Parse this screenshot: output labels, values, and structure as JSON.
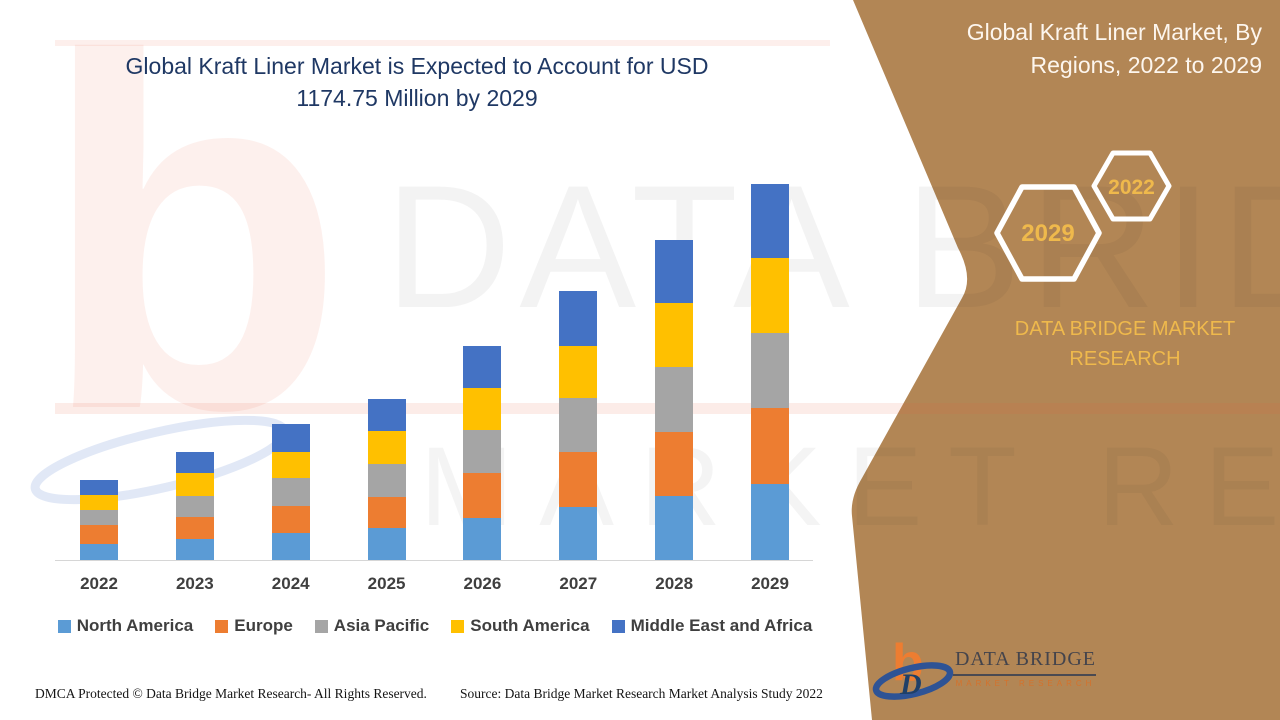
{
  "header": {
    "title_line1": "Global Kraft Liner Market is Expected to Account for USD",
    "title_line2": "1174.75 Million by 2029"
  },
  "side_panel": {
    "bg_color": "#b28655",
    "heading_line1": "Global Kraft Liner Market, By",
    "heading_line2": "Regions, 2022 to 2029",
    "hex_back_label": "2022",
    "hex_front_label": "2029",
    "brand_line1": "DATA BRIDGE MARKET",
    "brand_line2": "RESEARCH",
    "accent_gold": "#efb94c"
  },
  "chart_data": {
    "type": "bar",
    "stacked": true,
    "title": "Global Kraft Liner Market is Expected to Account for USD 1174.75 Million by 2029",
    "unit": "USD Million",
    "categories": [
      "2022",
      "2023",
      "2024",
      "2025",
      "2026",
      "2027",
      "2028",
      "2029"
    ],
    "series": [
      {
        "name": "North America",
        "color": "#5B9BD5",
        "values": [
          50,
          65,
          83,
          100,
          131,
          165,
          200,
          237.75
        ]
      },
      {
        "name": "Europe",
        "color": "#ED7D31",
        "values": [
          59,
          71,
          87,
          98,
          140,
          172,
          199,
          238
        ]
      },
      {
        "name": "Asia Pacific",
        "color": "#A5A5A5",
        "values": [
          48,
          63,
          85,
          103,
          135,
          170,
          205,
          233
        ]
      },
      {
        "name": "South America",
        "color": "#FFC000",
        "values": [
          46,
          72,
          84,
          103,
          133,
          162,
          198,
          236
        ]
      },
      {
        "name": "Middle East and Africa",
        "color": "#4472C4",
        "values": [
          47,
          67,
          86,
          100,
          131,
          170,
          199,
          230
        ]
      }
    ],
    "totals": [
      250,
      338,
      425,
      504,
      670,
      839,
      1001,
      1174.75
    ],
    "xlabel": "",
    "ylabel": "",
    "y_axis_visible": false,
    "grid": false,
    "legend_position": "bottom"
  },
  "watermark": {
    "monogram": "b",
    "line1": "DATA BRIDGE",
    "line2": "MARKET RESEARCH"
  },
  "logo": {
    "monogram": "b",
    "monogram_d": "D",
    "name": "DATA BRIDGE",
    "tagline": "MARKET RESEARCH",
    "orange": "#ED7D31",
    "blue": "#2e5395"
  },
  "footer": {
    "dmca": "DMCA Protected © Data Bridge Market Research- All Rights Reserved.",
    "source": "Source: Data Bridge Market Research Market Analysis Study 2022"
  }
}
